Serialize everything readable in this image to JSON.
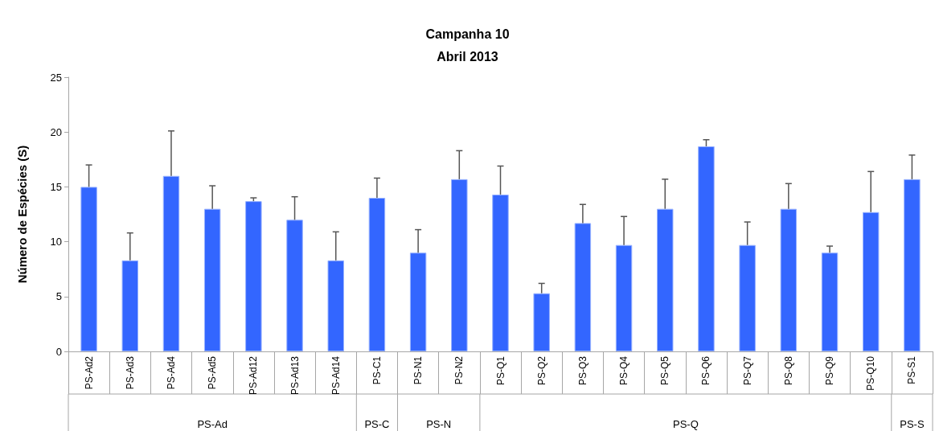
{
  "chart_data": {
    "type": "bar",
    "title": "Campanha 10",
    "subtitle": "Abril 2013",
    "ylabel": "Número de Espécies (S)",
    "categories": [
      "PS-Ad2",
      "PS-Ad3",
      "PS-Ad4",
      "PS-Ad5",
      "PS-Ad12",
      "PS-Ad13",
      "PS-Ad14",
      "PS-C1",
      "PS-N1",
      "PS-N2",
      "PS-Q1",
      "PS-Q2",
      "PS-Q3",
      "PS-Q4",
      "PS-Q5",
      "PS-Q6",
      "PS-Q7",
      "PS-Q8",
      "PS-Q9",
      "PS-Q10",
      "PS-S1"
    ],
    "values": [
      15,
      8.3,
      16,
      13,
      13.7,
      12,
      8.3,
      14,
      9,
      15.7,
      14.3,
      5.3,
      11.7,
      9.7,
      13,
      18.7,
      9.7,
      13,
      9,
      12.7,
      15.7
    ],
    "errors": [
      [
        15,
        17
      ],
      [
        8.3,
        10.8
      ],
      [
        16,
        20.1
      ],
      [
        13,
        15.1
      ],
      [
        13.7,
        14
      ],
      [
        12,
        14.1
      ],
      [
        8.3,
        10.9
      ],
      [
        14,
        15.8
      ],
      [
        9,
        11.1
      ],
      [
        15.7,
        18.3
      ],
      [
        14.3,
        16.9
      ],
      [
        5.3,
        6.2
      ],
      [
        11.7,
        13.4
      ],
      [
        9.7,
        12.3
      ],
      [
        13,
        15.7
      ],
      [
        18.7,
        19.3
      ],
      [
        9.7,
        11.8
      ],
      [
        13,
        15.3
      ],
      [
        9,
        9.6
      ],
      [
        12.7,
        16.4
      ],
      [
        15.7,
        17.9
      ]
    ],
    "color": "#3366ff",
    "annotations": [
      "PS-Ad",
      "PS-C",
      "PS-N",
      "PS-Q",
      "PS-S"
    ],
    "ylim": [
      0,
      25
    ],
    "yticks": [
      0,
      5,
      10,
      15,
      20,
      25
    ],
    "grid": false
  }
}
